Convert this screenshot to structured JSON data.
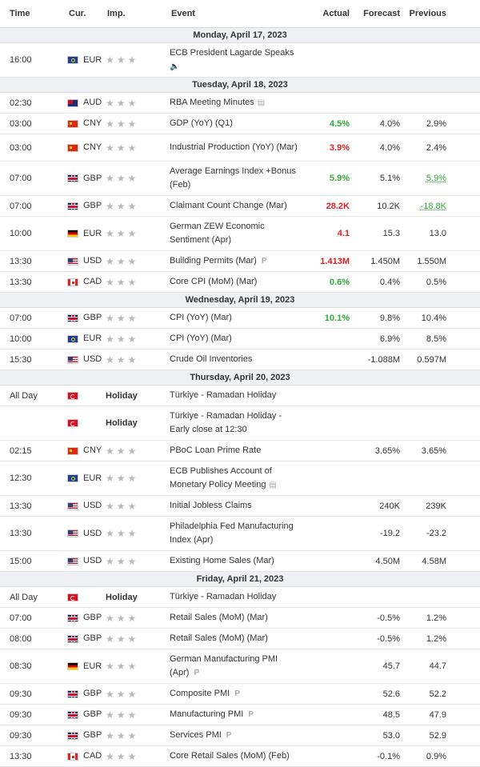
{
  "header": {
    "time": "Time",
    "currency": "Cur.",
    "importance": "Imp.",
    "event": "Event",
    "actual": "Actual",
    "forecast": "Forecast",
    "previous": "Previous"
  },
  "days": [
    {
      "date": "Monday, April 17, 2023",
      "events": [
        {
          "time": "16:00",
          "flag": "eur",
          "cur": "EUR",
          "event": "ECB President Lagarde Speaks",
          "icon": "speaker",
          "actual": "",
          "actual_color": "",
          "forecast": "",
          "previous": "",
          "previous_style": ""
        }
      ]
    },
    {
      "date": "Tuesday, April 18, 2023",
      "events": [
        {
          "time": "02:30",
          "flag": "aud",
          "cur": "AUD",
          "event": "RBA Meeting Minutes",
          "icon": "doc",
          "actual": "",
          "actual_color": "",
          "forecast": "",
          "previous": "",
          "previous_style": ""
        },
        {
          "time": "03:00",
          "flag": "cny",
          "cur": "CNY",
          "event": "GDP (YoY) (Q1)",
          "icon": "",
          "actual": "4.5%",
          "actual_color": "green",
          "forecast": "4.0%",
          "previous": "2.9%",
          "previous_style": ""
        },
        {
          "time": "03:00",
          "flag": "cny",
          "cur": "CNY",
          "event": "Industrial Production (YoY) (Mar)",
          "icon": "",
          "actual": "3.9%",
          "actual_color": "red",
          "forecast": "4.0%",
          "previous": "2.4%",
          "previous_style": ""
        },
        {
          "time": "07:00",
          "flag": "gbp",
          "cur": "GBP",
          "event": "Average Earnings Index +Bonus (Feb)",
          "icon": "",
          "actual": "5.9%",
          "actual_color": "green",
          "forecast": "5.1%",
          "previous": "5.9%",
          "previous_style": "rev"
        },
        {
          "time": "07:00",
          "flag": "gbp",
          "cur": "GBP",
          "event": "Claimant Count Change (Mar)",
          "icon": "",
          "actual": "28.2K",
          "actual_color": "red",
          "forecast": "10.2K",
          "previous": "-18.8K",
          "previous_style": "rev"
        },
        {
          "time": "10:00",
          "flag": "de",
          "cur": "EUR",
          "event": "German ZEW Economic Sentiment (Apr)",
          "icon": "",
          "actual": "4.1",
          "actual_color": "red",
          "forecast": "15.3",
          "previous": "13.0",
          "previous_style": ""
        },
        {
          "time": "13:30",
          "flag": "usd",
          "cur": "USD",
          "event": "Building Permits (Mar)",
          "icon": "p",
          "actual": "1.413M",
          "actual_color": "red",
          "forecast": "1.450M",
          "previous": "1.550M",
          "previous_style": ""
        },
        {
          "time": "13:30",
          "flag": "cad",
          "cur": "CAD",
          "event": "Core CPI (MoM) (Mar)",
          "icon": "",
          "actual": "0.6%",
          "actual_color": "green",
          "forecast": "0.4%",
          "previous": "0.5%",
          "previous_style": ""
        }
      ]
    },
    {
      "date": "Wednesday, April 19, 2023",
      "events": [
        {
          "time": "07:00",
          "flag": "gbp",
          "cur": "GBP",
          "event": "CPI (YoY) (Mar)",
          "icon": "",
          "actual": "10.1%",
          "actual_color": "green",
          "forecast": "9.8%",
          "previous": "10.4%",
          "previous_style": ""
        },
        {
          "time": "10:00",
          "flag": "eur",
          "cur": "EUR",
          "event": "CPI (YoY) (Mar)",
          "icon": "",
          "actual": "",
          "actual_color": "",
          "forecast": "6.9%",
          "previous": "8.5%",
          "previous_style": ""
        },
        {
          "time": "15:30",
          "flag": "usd",
          "cur": "USD",
          "event": "Crude Oil Inventories",
          "icon": "",
          "actual": "",
          "actual_color": "",
          "forecast": "-1.088M",
          "previous": "0.597M",
          "previous_style": ""
        }
      ]
    },
    {
      "date": "Thursday, April 20, 2023",
      "events": [
        {
          "time": "All Day",
          "flag": "try",
          "cur": "",
          "holiday": "Holiday",
          "event": "Türkiye - Ramadan Holiday",
          "icon": "",
          "actual": "",
          "actual_color": "",
          "forecast": "",
          "previous": "",
          "previous_style": ""
        },
        {
          "time": "",
          "flag": "try",
          "cur": "",
          "holiday": "Holiday",
          "event": "Türkiye - Ramadan Holiday - Early close at 12:30",
          "icon": "",
          "actual": "",
          "actual_color": "",
          "forecast": "",
          "previous": "",
          "previous_style": ""
        },
        {
          "time": "02:15",
          "flag": "cny",
          "cur": "CNY",
          "event": "PBoC Loan Prime Rate",
          "icon": "",
          "actual": "",
          "actual_color": "",
          "forecast": "3.65%",
          "previous": "3.65%",
          "previous_style": ""
        },
        {
          "time": "12:30",
          "flag": "eur",
          "cur": "EUR",
          "event": "ECB Publishes Account of Monetary Policy Meeting",
          "icon": "doc",
          "actual": "",
          "actual_color": "",
          "forecast": "",
          "previous": "",
          "previous_style": ""
        },
        {
          "time": "13:30",
          "flag": "usd",
          "cur": "USD",
          "event": "Initial Jobless Claims",
          "icon": "",
          "actual": "",
          "actual_color": "",
          "forecast": "240K",
          "previous": "239K",
          "previous_style": ""
        },
        {
          "time": "13:30",
          "flag": "usd",
          "cur": "USD",
          "event": "Philadelphia Fed Manufacturing Index (Apr)",
          "icon": "",
          "actual": "",
          "actual_color": "",
          "forecast": "-19.2",
          "previous": "-23.2",
          "previous_style": ""
        },
        {
          "time": "15:00",
          "flag": "usd",
          "cur": "USD",
          "event": "Existing Home Sales (Mar)",
          "icon": "",
          "actual": "",
          "actual_color": "",
          "forecast": "4.50M",
          "previous": "4.58M",
          "previous_style": ""
        }
      ]
    },
    {
      "date": "Friday, April 21, 2023",
      "events": [
        {
          "time": "All Day",
          "flag": "try",
          "cur": "",
          "holiday": "Holiday",
          "event": "Türkiye - Ramadan Holiday",
          "icon": "",
          "actual": "",
          "actual_color": "",
          "forecast": "",
          "previous": "",
          "previous_style": ""
        },
        {
          "time": "07:00",
          "flag": "gbp",
          "cur": "GBP",
          "event": "Retail Sales (MoM) (Mar)",
          "icon": "",
          "actual": "",
          "actual_color": "",
          "forecast": "-0.5%",
          "previous": "1.2%",
          "previous_style": ""
        },
        {
          "time": "08:00",
          "flag": "gbp",
          "cur": "GBP",
          "event": "Retail Sales (MoM) (Mar)",
          "icon": "",
          "actual": "",
          "actual_color": "",
          "forecast": "-0.5%",
          "previous": "1.2%",
          "previous_style": ""
        },
        {
          "time": "08:30",
          "flag": "de",
          "cur": "EUR",
          "event": "German Manufacturing PMI (Apr)",
          "icon": "p",
          "actual": "",
          "actual_color": "",
          "forecast": "45.7",
          "previous": "44.7",
          "previous_style": ""
        },
        {
          "time": "09:30",
          "flag": "gbp",
          "cur": "GBP",
          "event": "Composite PMI",
          "icon": "p",
          "actual": "",
          "actual_color": "",
          "forecast": "52.6",
          "previous": "52.2",
          "previous_style": ""
        },
        {
          "time": "09:30",
          "flag": "gbp",
          "cur": "GBP",
          "event": "Manufacturing PMI",
          "icon": "p",
          "actual": "",
          "actual_color": "",
          "forecast": "48.5",
          "previous": "47.9",
          "previous_style": ""
        },
        {
          "time": "09:30",
          "flag": "gbp",
          "cur": "GBP",
          "event": "Services PMI",
          "icon": "p",
          "actual": "",
          "actual_color": "",
          "forecast": "53.0",
          "previous": "52.9",
          "previous_style": ""
        },
        {
          "time": "13:30",
          "flag": "cad",
          "cur": "CAD",
          "event": "Core Retail Sales (MoM) (Feb)",
          "icon": "",
          "actual": "",
          "actual_color": "",
          "forecast": "-0.1%",
          "previous": "0.9%",
          "previous_style": ""
        }
      ]
    }
  ],
  "colors": {
    "positive": "#2eab35",
    "negative": "#e02020",
    "date_band": "#eef0f4"
  },
  "icons": {
    "star": "star-icon",
    "speaker": "speaker-icon",
    "doc": "document-icon",
    "p": "preliminary-icon"
  }
}
